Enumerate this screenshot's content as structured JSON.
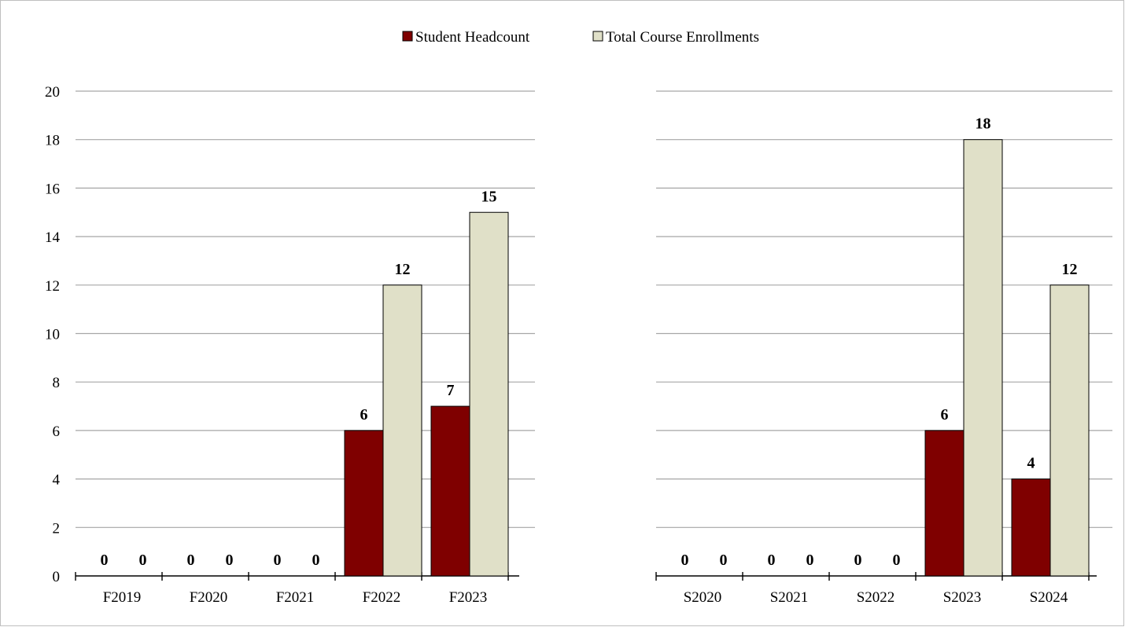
{
  "chart_data": [
    {
      "type": "bar",
      "categories": [
        "F2019",
        "F2020",
        "F2021",
        "F2022",
        "F2023"
      ],
      "series": [
        {
          "name": "Student Headcount",
          "values": [
            0,
            0,
            0,
            6,
            7
          ]
        },
        {
          "name": "Total Course Enrollments",
          "values": [
            0,
            0,
            0,
            12,
            15
          ]
        }
      ],
      "ylim": [
        0,
        20
      ],
      "yticks": [
        0,
        2,
        4,
        6,
        8,
        10,
        12,
        14,
        16,
        18,
        20
      ],
      "grid": true
    },
    {
      "type": "bar",
      "categories": [
        "S2020",
        "S2021",
        "S2022",
        "S2023",
        "S2024"
      ],
      "series": [
        {
          "name": "Student Headcount",
          "values": [
            0,
            0,
            0,
            6,
            4
          ]
        },
        {
          "name": "Total Course Enrollments",
          "values": [
            0,
            0,
            0,
            18,
            12
          ]
        }
      ],
      "ylim": [
        0,
        20
      ],
      "grid": true
    }
  ],
  "legend": {
    "placement": "top-center",
    "entries": [
      {
        "label": "Student Headcount",
        "color": "#7f0000"
      },
      {
        "label": "Total Course Enrollments",
        "color": "#e0e0c8"
      }
    ]
  },
  "colors": {
    "headcount": "#7f0000",
    "enrollments": "#e0e0c8",
    "gridline": "#a6a6a6",
    "bar_edge": "#000000"
  }
}
